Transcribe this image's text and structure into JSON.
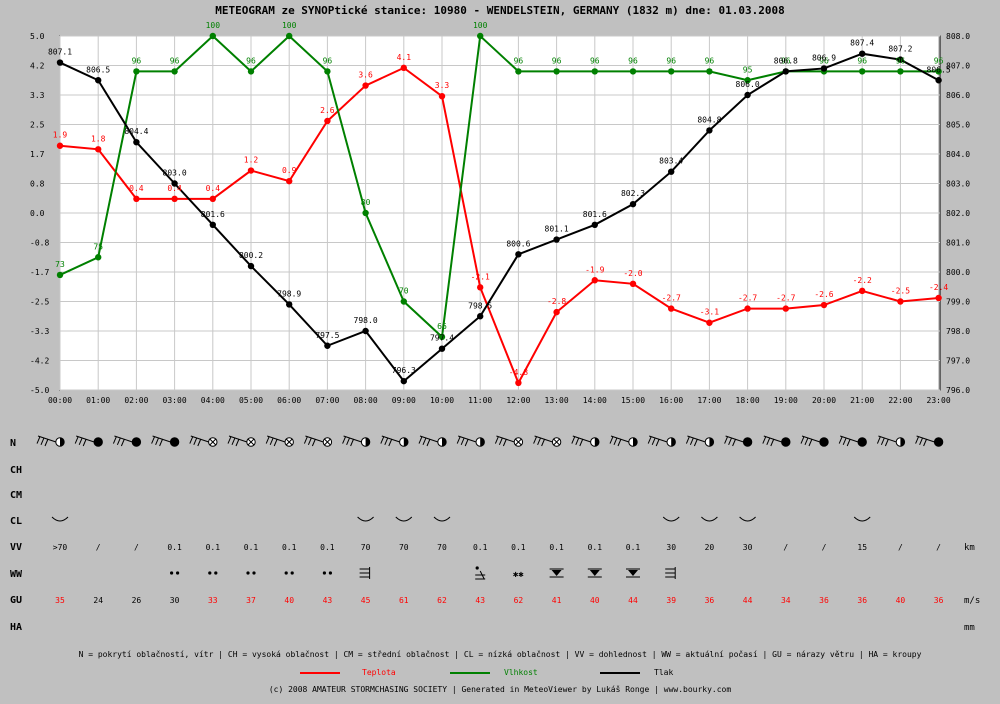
{
  "title": "METEOGRAM ze SYNOPtické stanice: 10980 - WENDELSTEIN, GERMANY (1832 m) dne: 01.03.2008",
  "colors": {
    "background": "#c0c0c0",
    "plot_bg": "#ffffff",
    "grid": "#c8c8c8",
    "temperature": "#ff0000",
    "humidity": "#008000",
    "pressure": "#000000",
    "gust_strong": "#ff0000",
    "gust_normal": "#000000"
  },
  "chart_data": {
    "type": "line",
    "title": "METEOGRAM ze SYNOPtické stanice: 10980 - WENDELSTEIN, GERMANY (1832 m) dne: 01.03.2008",
    "x": [
      "00:00",
      "01:00",
      "02:00",
      "03:00",
      "04:00",
      "05:00",
      "06:00",
      "07:00",
      "08:00",
      "09:00",
      "10:00",
      "11:00",
      "12:00",
      "13:00",
      "14:00",
      "15:00",
      "16:00",
      "17:00",
      "18:00",
      "19:00",
      "20:00",
      "21:00",
      "22:00",
      "23:00"
    ],
    "left_axis": {
      "ylim": [
        -5.0,
        5.0
      ],
      "ticks": [
        "5.0",
        "4.2",
        "3.3",
        "2.5",
        "1.7",
        "0.8",
        "0.0",
        "-0.8",
        "-1.7",
        "-2.5",
        "-3.3",
        "-4.2",
        "-5.0"
      ]
    },
    "right_axis": {
      "ylim": [
        796.0,
        808.0
      ],
      "ticks": [
        "808.0",
        "807.0",
        "806.0",
        "805.0",
        "804.0",
        "803.0",
        "802.0",
        "801.0",
        "800.0",
        "799.0",
        "798.0",
        "797.0",
        "796.0"
      ]
    },
    "humidity_range": [
      60,
      100
    ],
    "grid": true,
    "series": [
      {
        "name": "Teplota",
        "axis": "left",
        "color": "#ff0000",
        "values": [
          1.9,
          1.8,
          0.4,
          0.4,
          0.4,
          1.2,
          0.9,
          2.6,
          3.6,
          4.1,
          3.3,
          -2.1,
          -4.8,
          -2.8,
          -1.9,
          -2.0,
          -2.7,
          -3.1,
          -2.7,
          -2.7,
          -2.6,
          -2.2,
          -2.5,
          -2.4
        ],
        "labels": [
          "1.9",
          "1.8",
          "0.4",
          "0.4",
          "0.4",
          "1.2",
          "0.9",
          "2.6",
          "3.6",
          "4.1",
          "3.3",
          "-2.1",
          "-4.8",
          "-2.8",
          "-1.9",
          "-2.0",
          "-2.7",
          "-3.1",
          "-2.7",
          "-2.7",
          "-2.6",
          "-2.2",
          "-2.5",
          "-2.4"
        ]
      },
      {
        "name": "Vlhkost",
        "axis": "humidity",
        "color": "#008000",
        "values": [
          73,
          75,
          96,
          96,
          100,
          96,
          100,
          96,
          80,
          70,
          66,
          100,
          96,
          96,
          96,
          96,
          96,
          96,
          95,
          96,
          96,
          96,
          96,
          96
        ],
        "labels": [
          "73",
          "75",
          "96",
          "96",
          "100",
          "96",
          "100",
          "96",
          "80",
          "70",
          "66",
          "100",
          "96",
          "96",
          "96",
          "96",
          "96",
          "96",
          "95",
          "96",
          "96",
          "96",
          "96",
          "96"
        ]
      },
      {
        "name": "Tlak",
        "axis": "right",
        "color": "#000000",
        "values": [
          807.1,
          806.5,
          804.4,
          803.0,
          801.6,
          800.2,
          798.9,
          797.5,
          798.0,
          796.3,
          797.4,
          798.5,
          800.6,
          801.1,
          801.6,
          802.3,
          803.4,
          804.8,
          806.0,
          806.8,
          806.9,
          807.4,
          807.2,
          806.5
        ],
        "labels": [
          "807.1",
          "806.5",
          "804.4",
          "803.0",
          "801.6",
          "800.2",
          "798.9",
          "797.5",
          "798.0",
          "796.3",
          "797.4",
          "798.5",
          "800.6",
          "801.1",
          "801.6",
          "802.3",
          "803.4",
          "804.8",
          "806.0",
          "806.8",
          "806.9",
          "807.4",
          "807.2",
          "806.5"
        ]
      }
    ]
  },
  "rows": {
    "N": {
      "label": "N",
      "cover": [
        4,
        8,
        8,
        8,
        9,
        9,
        9,
        9,
        4,
        4,
        4,
        4,
        9,
        9,
        4,
        4,
        4,
        4,
        8,
        8,
        8,
        8,
        4,
        8
      ]
    },
    "CH": {
      "label": "CH"
    },
    "CM": {
      "label": "CM"
    },
    "CL": {
      "label": "CL",
      "present": [
        true,
        false,
        false,
        false,
        false,
        false,
        false,
        false,
        true,
        true,
        true,
        false,
        false,
        false,
        false,
        false,
        true,
        true,
        true,
        false,
        false,
        true,
        false,
        false
      ]
    },
    "VV": {
      "label": "VV",
      "unit": "km",
      "values": [
        ">70",
        "/",
        "/",
        "0.1",
        "0.1",
        "0.1",
        "0.1",
        "0.1",
        "70",
        "70",
        "70",
        "0.1",
        "0.1",
        "0.1",
        "0.1",
        "0.1",
        "30",
        "20",
        "30",
        "/",
        "/",
        "15",
        "/",
        "/"
      ]
    },
    "WW": {
      "label": "WW",
      "symbols": [
        "",
        "",
        "",
        "dots",
        "dots",
        "dots",
        "dots",
        "dots",
        "fog",
        "",
        "",
        "showers",
        "snow",
        "fogsnow",
        "fogsnow",
        "fogsnow",
        "fog",
        "",
        "",
        "",
        "",
        "",
        "",
        ""
      ]
    },
    "GU": {
      "label": "GU",
      "unit": "m/s",
      "values": [
        "35",
        "24",
        "26",
        "30",
        "33",
        "37",
        "40",
        "43",
        "45",
        "61",
        "62",
        "43",
        "62",
        "41",
        "40",
        "44",
        "39",
        "36",
        "44",
        "34",
        "36",
        "36",
        "40",
        "36"
      ],
      "red": [
        true,
        false,
        false,
        false,
        true,
        true,
        true,
        true,
        true,
        true,
        true,
        true,
        true,
        true,
        true,
        true,
        true,
        true,
        true,
        true,
        true,
        true,
        true,
        true
      ]
    },
    "HA": {
      "label": "HA",
      "unit": "mm"
    }
  },
  "legend_text": "N = pokrytí oblačností, vítr | CH = vysoká oblačnost | CM = střední oblačnost | CL = nízká oblačnost | VV = dohlednost | WW = aktuální počasí | GU = nárazy větru | HA = kroupy",
  "legend_items": [
    {
      "name": "Teplota",
      "color": "#ff0000"
    },
    {
      "name": "Vlhkost",
      "color": "#008000"
    },
    {
      "name": "Tlak",
      "color": "#000000"
    }
  ],
  "footer": "(c) 2008 AMATEUR STORMCHASING SOCIETY | Generated in MeteoViewer by Lukáš Ronge | www.bourky.com"
}
